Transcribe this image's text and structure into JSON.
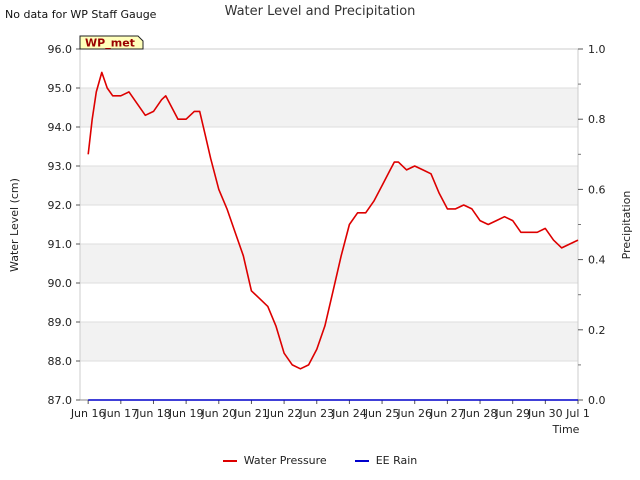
{
  "header": {
    "title": "Water Level and Precipitation",
    "no_data_note": "No data for WP Staff Gauge"
  },
  "chart_data": {
    "type": "line",
    "title": "Water Level and Precipitation",
    "xlabel": "Time",
    "ylabel_left": "Water Level (cm)",
    "ylabel_right": "Precipitation",
    "station_badge": "WP_met",
    "x_ticks": [
      "Jun 16",
      "Jun 17",
      "Jun 18",
      "Jun 19",
      "Jun 20",
      "Jun 21",
      "Jun 22",
      "Jun 23",
      "Jun 24",
      "Jun 25",
      "Jun 26",
      "Jun 27",
      "Jun 28",
      "Jun 29",
      "Jun 30",
      "Jul 1"
    ],
    "x_tick_labels": [
      "Jun 16",
      "Jun 17",
      "Jun 18",
      "Jun 19",
      "Jun 20",
      "Jun 21",
      "Jun 22",
      "Jun 23",
      "Jun 24",
      "Jun 25",
      "Jun 26",
      "Jun 27",
      "Jun 28",
      "Jun 29",
      "Jun 30",
      "Jul 1"
    ],
    "xlim": [
      "Jun 15 18:00",
      "Jul 1 00:00"
    ],
    "y_left_ticks": [
      "87.0",
      "88.0",
      "89.0",
      "90.0",
      "91.0",
      "92.0",
      "93.0",
      "94.0",
      "95.0",
      "96.0"
    ],
    "y_left_lim": [
      87.0,
      96.0
    ],
    "y_right_ticks": [
      "0.0",
      "0.2",
      "0.4",
      "0.6",
      "0.8",
      "1.0"
    ],
    "y_right_lim": [
      0.0,
      1.0
    ],
    "banded_background": true,
    "legend_position": "bottom-center",
    "series": [
      {
        "name": "Water Pressure",
        "color": "#dd0000",
        "axis": "left",
        "points": [
          [
            "Jun 16 00:00",
            93.3
          ],
          [
            "Jun 16 03:00",
            94.2
          ],
          [
            "Jun 16 06:00",
            94.9
          ],
          [
            "Jun 16 10:00",
            95.4
          ],
          [
            "Jun 16 14:00",
            95.0
          ],
          [
            "Jun 16 18:00",
            94.8
          ],
          [
            "Jun 17 00:00",
            94.8
          ],
          [
            "Jun 17 06:00",
            94.9
          ],
          [
            "Jun 17 12:00",
            94.6
          ],
          [
            "Jun 17 18:00",
            94.3
          ],
          [
            "Jun 18 00:00",
            94.4
          ],
          [
            "Jun 18 06:00",
            94.7
          ],
          [
            "Jun 18 09:00",
            94.8
          ],
          [
            "Jun 18 12:00",
            94.6
          ],
          [
            "Jun 18 18:00",
            94.2
          ],
          [
            "Jun 19 00:00",
            94.2
          ],
          [
            "Jun 19 06:00",
            94.4
          ],
          [
            "Jun 19 10:00",
            94.4
          ],
          [
            "Jun 19 14:00",
            93.8
          ],
          [
            "Jun 19 18:00",
            93.2
          ],
          [
            "Jun 20 00:00",
            92.4
          ],
          [
            "Jun 20 06:00",
            91.9
          ],
          [
            "Jun 20 12:00",
            91.3
          ],
          [
            "Jun 20 18:00",
            90.7
          ],
          [
            "Jun 21 00:00",
            89.8
          ],
          [
            "Jun 21 06:00",
            89.6
          ],
          [
            "Jun 21 12:00",
            89.4
          ],
          [
            "Jun 21 18:00",
            88.9
          ],
          [
            "Jun 22 00:00",
            88.2
          ],
          [
            "Jun 22 06:00",
            87.9
          ],
          [
            "Jun 22 12:00",
            87.8
          ],
          [
            "Jun 22 18:00",
            87.9
          ],
          [
            "Jun 23 00:00",
            88.3
          ],
          [
            "Jun 23 06:00",
            88.9
          ],
          [
            "Jun 23 12:00",
            89.8
          ],
          [
            "Jun 23 18:00",
            90.7
          ],
          [
            "Jun 24 00:00",
            91.5
          ],
          [
            "Jun 24 06:00",
            91.8
          ],
          [
            "Jun 24 12:00",
            91.8
          ],
          [
            "Jun 24 18:00",
            92.1
          ],
          [
            "Jun 25 00:00",
            92.5
          ],
          [
            "Jun 25 06:00",
            92.9
          ],
          [
            "Jun 25 09:00",
            93.1
          ],
          [
            "Jun 25 12:00",
            93.1
          ],
          [
            "Jun 25 18:00",
            92.9
          ],
          [
            "Jun 26 00:00",
            93.0
          ],
          [
            "Jun 26 06:00",
            92.9
          ],
          [
            "Jun 26 12:00",
            92.8
          ],
          [
            "Jun 26 18:00",
            92.3
          ],
          [
            "Jun 27 00:00",
            91.9
          ],
          [
            "Jun 27 06:00",
            91.9
          ],
          [
            "Jun 27 12:00",
            92.0
          ],
          [
            "Jun 27 18:00",
            91.9
          ],
          [
            "Jun 28 00:00",
            91.6
          ],
          [
            "Jun 28 06:00",
            91.5
          ],
          [
            "Jun 28 12:00",
            91.6
          ],
          [
            "Jun 28 18:00",
            91.7
          ],
          [
            "Jun 29 00:00",
            91.6
          ],
          [
            "Jun 29 06:00",
            91.3
          ],
          [
            "Jun 29 12:00",
            91.3
          ],
          [
            "Jun 29 18:00",
            91.3
          ],
          [
            "Jun 30 00:00",
            91.4
          ],
          [
            "Jun 30 06:00",
            91.1
          ],
          [
            "Jun 30 12:00",
            90.9
          ],
          [
            "Jun 30 18:00",
            91.0
          ],
          [
            "Jul 1 00:00",
            91.1
          ]
        ]
      },
      {
        "name": "EE Rain",
        "color": "#0000cc",
        "axis": "right",
        "points": [
          [
            "Jun 16 00:00",
            0.0
          ],
          [
            "Jul 1 00:00",
            0.0
          ]
        ]
      }
    ]
  }
}
